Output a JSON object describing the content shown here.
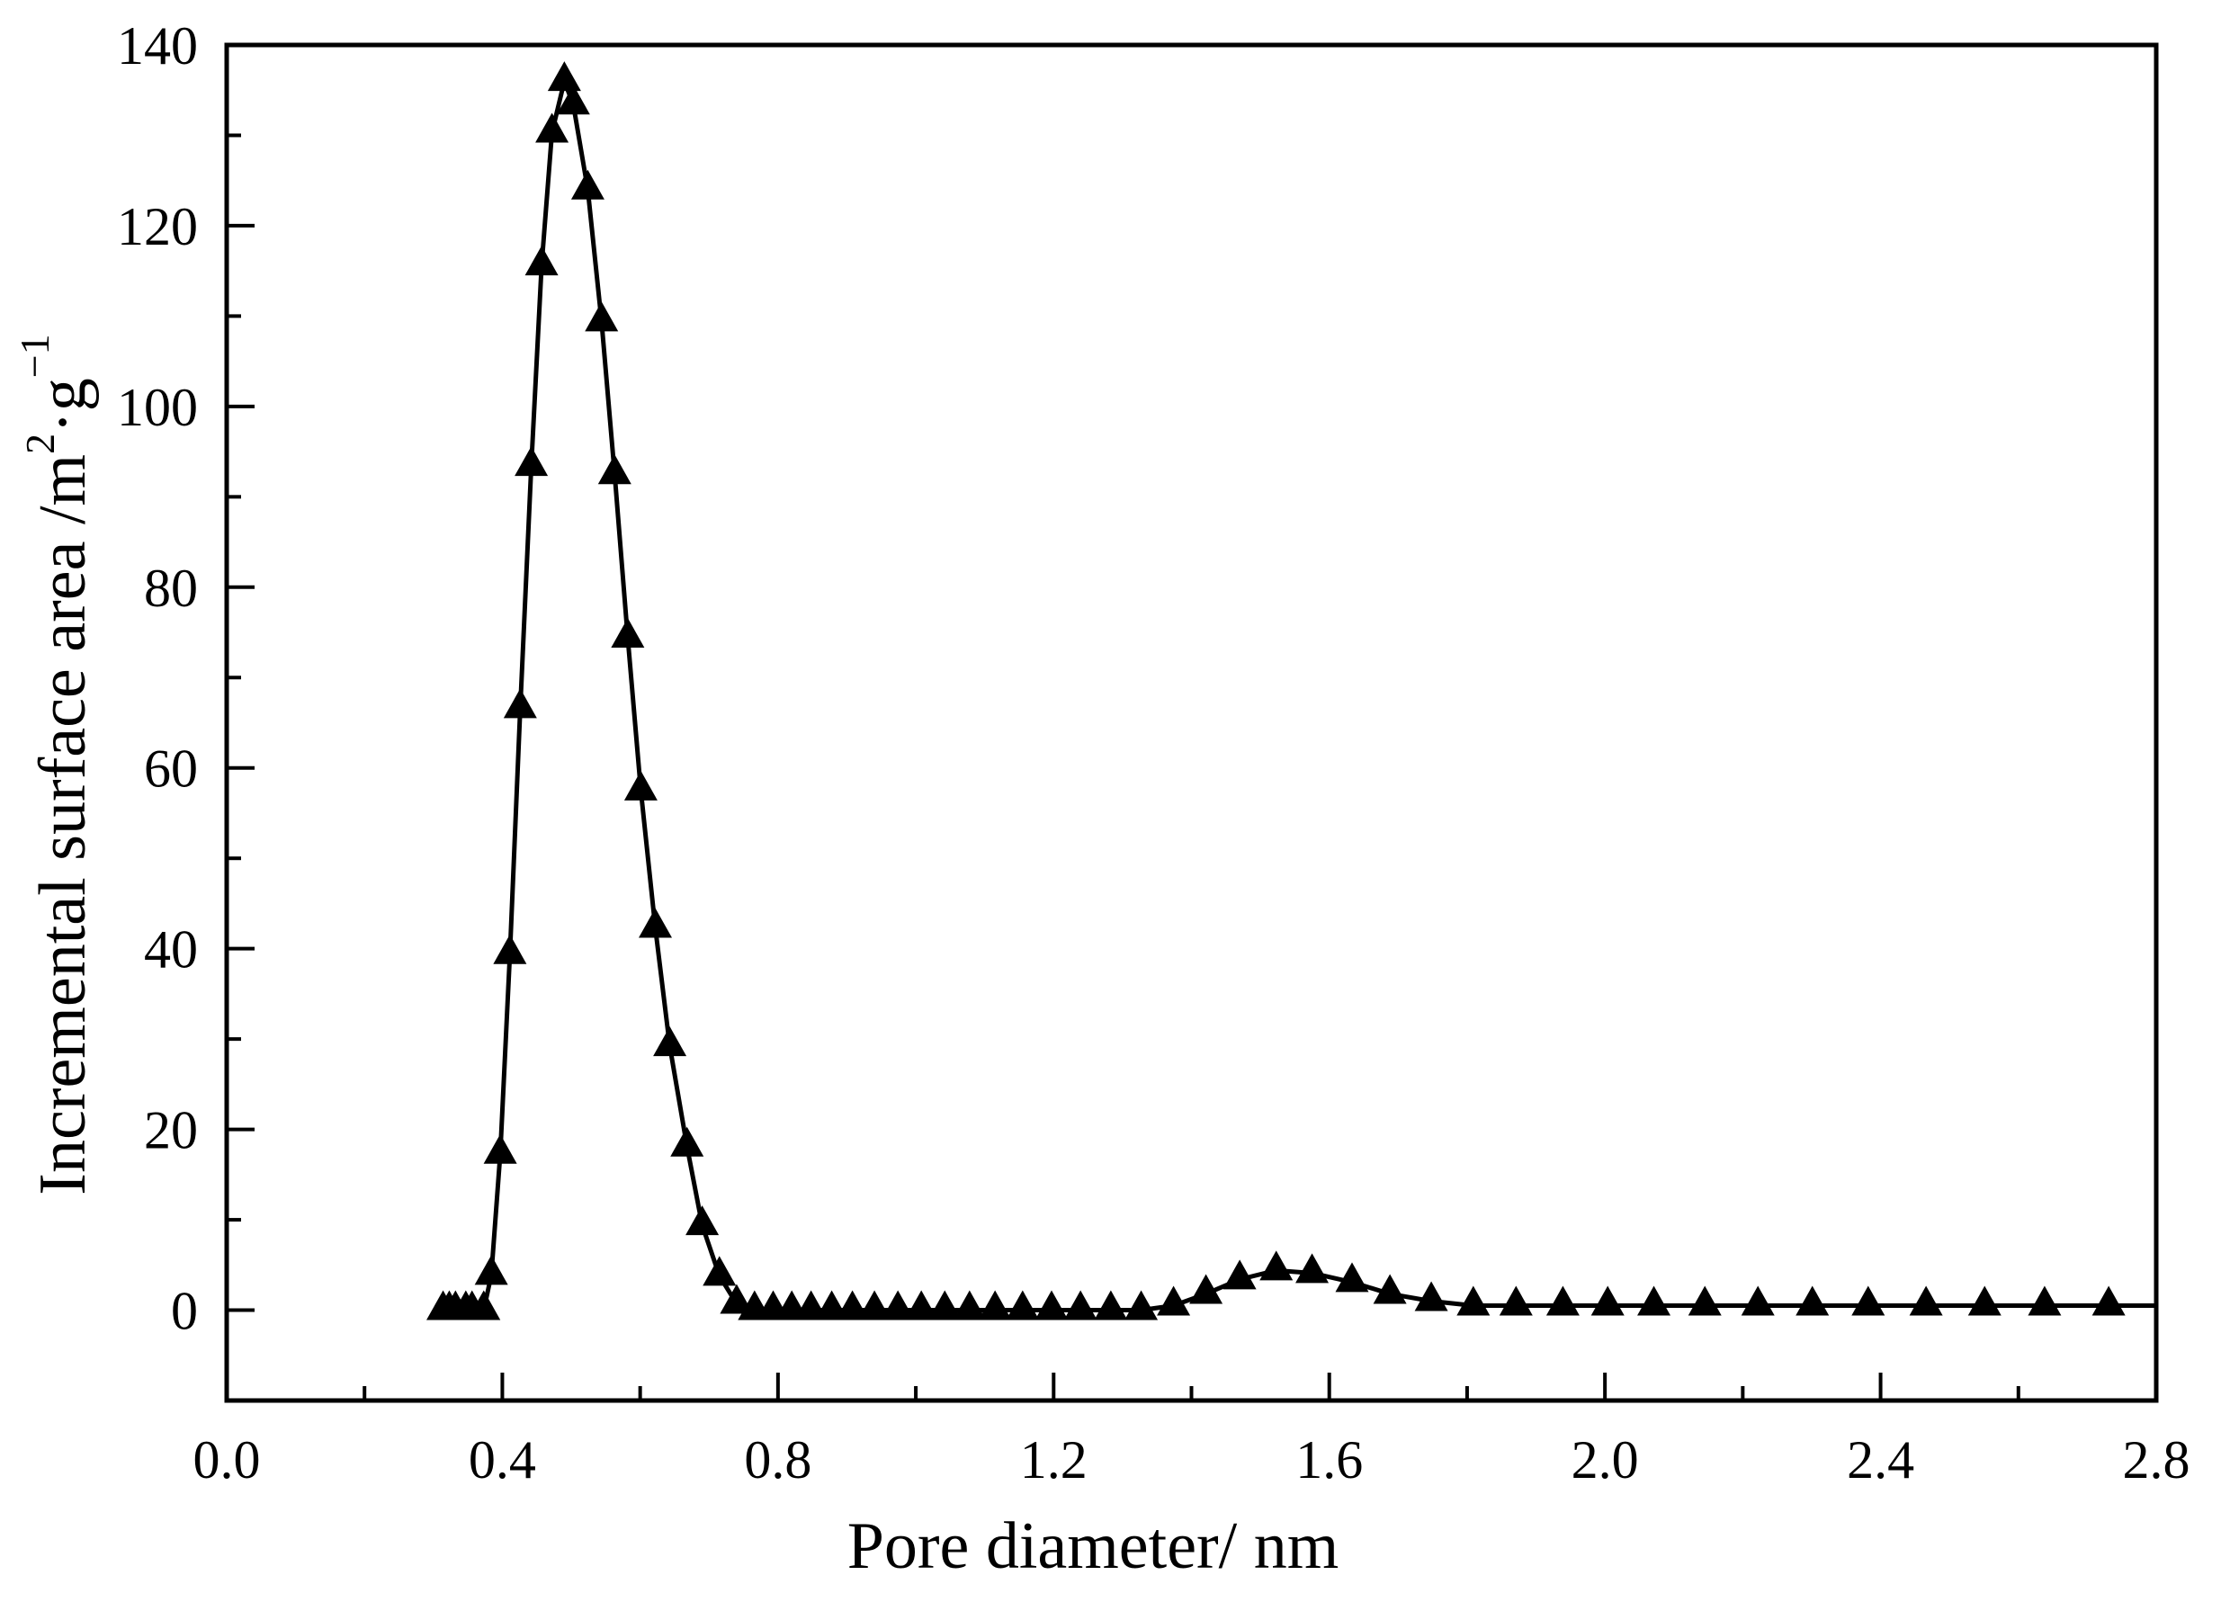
{
  "chart_data": {
    "type": "line",
    "title": "",
    "xlabel": "Pore diameter/ nm",
    "ylabel": "Incremental surface area /m²·g⁻¹",
    "ylabel_parts": {
      "base": "Incremental surface area /m",
      "sup1": "2",
      "mid": "·g",
      "sup2": "−1"
    },
    "xlim": [
      0.0,
      2.8
    ],
    "ylim": [
      -10,
      140
    ],
    "x_ticks": [
      "0.0",
      "0.4",
      "0.8",
      "1.2",
      "1.6",
      "2.0",
      "2.4",
      "2.8"
    ],
    "x_tick_values": [
      0.0,
      0.4,
      0.8,
      1.2,
      1.6,
      2.0,
      2.4,
      2.8
    ],
    "x_minor_tick_values": [
      0.2,
      0.6,
      1.0,
      1.4,
      1.8,
      2.2,
      2.6
    ],
    "y_ticks": [
      "0",
      "20",
      "40",
      "60",
      "80",
      "100",
      "120",
      "140"
    ],
    "y_tick_values": [
      0,
      20,
      40,
      60,
      80,
      100,
      120,
      140
    ],
    "y_minor_tick_values": [
      10,
      30,
      50,
      70,
      90,
      110,
      130
    ],
    "grid": false,
    "legend": null,
    "series": [
      {
        "name": "Incremental surface area",
        "marker": "filled-triangle",
        "color": "#000000",
        "x": [
          0.314,
          0.323,
          0.332,
          0.347,
          0.356,
          0.373,
          0.384,
          0.397,
          0.411,
          0.426,
          0.442,
          0.457,
          0.472,
          0.49,
          0.503,
          0.524,
          0.544,
          0.563,
          0.582,
          0.601,
          0.622,
          0.643,
          0.668,
          0.69,
          0.715,
          0.74,
          0.766,
          0.793,
          0.82,
          0.848,
          0.878,
          0.908,
          0.94,
          0.974,
          1.008,
          1.042,
          1.078,
          1.115,
          1.155,
          1.197,
          1.239,
          1.283,
          1.327,
          1.374,
          1.421,
          1.47,
          1.523,
          1.575,
          1.633,
          1.688,
          1.748,
          1.809,
          1.871,
          1.939,
          2.004,
          2.071,
          2.145,
          2.222,
          2.301,
          2.382,
          2.466,
          2.551,
          2.638,
          2.731
        ],
        "y": [
          0,
          0,
          0,
          0,
          0,
          0,
          3.9,
          17.3,
          39.4,
          66.6,
          93.4,
          115.6,
          130.3,
          136.0,
          133.4,
          124.0,
          109.4,
          92.5,
          74.4,
          57.5,
          42.3,
          29.2,
          18.1,
          9.4,
          3.8,
          0.7,
          0,
          0,
          0,
          0,
          0,
          0,
          0,
          0,
          0,
          0,
          0,
          0,
          0,
          0,
          0,
          0,
          0,
          0.5,
          1.8,
          3.4,
          4.4,
          4.1,
          3.1,
          1.8,
          1.0,
          0.5,
          0.5,
          0.5,
          0.5,
          0.5,
          0.5,
          0.5,
          0.5,
          0.5,
          0.5,
          0.5,
          0.5,
          0.5
        ],
        "line_extends_to_x": 2.8,
        "line_end_y": 0.5
      }
    ]
  }
}
